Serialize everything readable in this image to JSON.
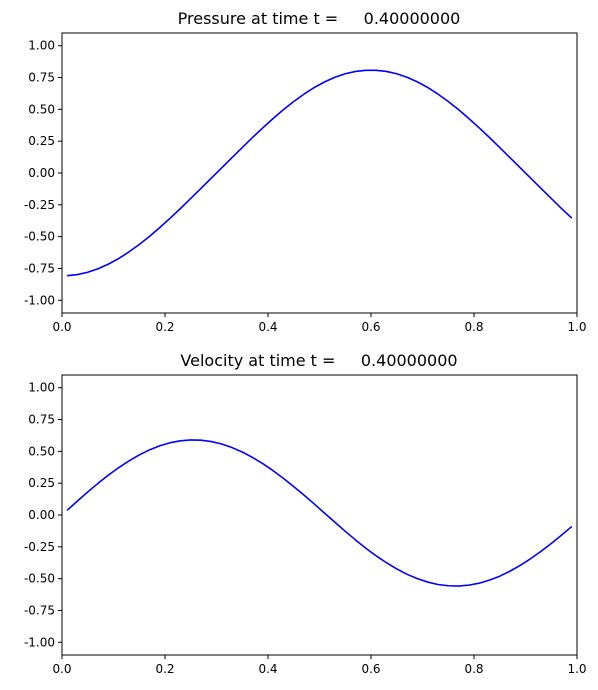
{
  "chart_data": [
    {
      "type": "line",
      "title": "Pressure at time t =     0.40000000",
      "xlabel": "",
      "ylabel": "",
      "xlim": [
        0.0,
        1.0
      ],
      "ylim": [
        -1.1,
        1.1
      ],
      "grid": false,
      "xticks": [
        "0.0",
        "0.2",
        "0.4",
        "0.6",
        "0.8",
        "1.0"
      ],
      "yticks": [
        "1.00",
        "0.75",
        "0.50",
        "0.25",
        "0.00",
        "-0.25",
        "-0.50",
        "-0.75",
        "-1.00"
      ],
      "series": [
        {
          "color": "#0000ff",
          "x": [
            0.01,
            0.03,
            0.05,
            0.07,
            0.09,
            0.11,
            0.13,
            0.15,
            0.17,
            0.19,
            0.21,
            0.23,
            0.25,
            0.27,
            0.29,
            0.31,
            0.33,
            0.35,
            0.37,
            0.39,
            0.41,
            0.43,
            0.45,
            0.47,
            0.49,
            0.51,
            0.53,
            0.55,
            0.57,
            0.59,
            0.61,
            0.63,
            0.65,
            0.67,
            0.69,
            0.71,
            0.73,
            0.75,
            0.77,
            0.79,
            0.81,
            0.83,
            0.85,
            0.87,
            0.89,
            0.91,
            0.93,
            0.95,
            0.97,
            0.99
          ],
          "y": [
            -0.807,
            -0.798,
            -0.78,
            -0.752,
            -0.716,
            -0.672,
            -0.62,
            -0.562,
            -0.498,
            -0.428,
            -0.355,
            -0.279,
            -0.2,
            -0.12,
            -0.04,
            0.04,
            0.12,
            0.2,
            0.279,
            0.355,
            0.428,
            0.498,
            0.562,
            0.62,
            0.672,
            0.716,
            0.752,
            0.78,
            0.798,
            0.807,
            0.807,
            0.798,
            0.78,
            0.752,
            0.716,
            0.672,
            0.62,
            0.562,
            0.498,
            0.428,
            0.355,
            0.279,
            0.2,
            0.12,
            0.04,
            -0.04,
            -0.12,
            -0.2,
            -0.279,
            -0.355
          ]
        }
      ]
    },
    {
      "type": "line",
      "title": "Velocity at time t =     0.40000000",
      "xlabel": "",
      "ylabel": "",
      "xlim": [
        0.0,
        1.0
      ],
      "ylim": [
        -1.1,
        1.1
      ],
      "grid": false,
      "xticks": [
        "0.0",
        "0.2",
        "0.4",
        "0.6",
        "0.8",
        "1.0"
      ],
      "yticks": [
        "1.00",
        "0.75",
        "0.50",
        "0.25",
        "0.00",
        "-0.25",
        "-0.50",
        "-0.75",
        "-1.00"
      ],
      "series": [
        {
          "color": "#0000ff",
          "x": [
            0.01,
            0.03,
            0.05,
            0.07,
            0.09,
            0.11,
            0.13,
            0.15,
            0.17,
            0.19,
            0.21,
            0.23,
            0.25,
            0.27,
            0.29,
            0.31,
            0.33,
            0.35,
            0.37,
            0.39,
            0.41,
            0.43,
            0.45,
            0.47,
            0.49,
            0.51,
            0.53,
            0.55,
            0.57,
            0.59,
            0.61,
            0.63,
            0.65,
            0.67,
            0.69,
            0.71,
            0.73,
            0.75,
            0.77,
            0.79,
            0.81,
            0.83,
            0.85,
            0.87,
            0.89,
            0.91,
            0.93,
            0.95,
            0.97,
            0.99
          ],
          "y": [
            0.037,
            0.11,
            0.181,
            0.249,
            0.313,
            0.372,
            0.425,
            0.472,
            0.512,
            0.544,
            0.568,
            0.583,
            0.59,
            0.588,
            0.577,
            0.558,
            0.53,
            0.495,
            0.452,
            0.403,
            0.348,
            0.288,
            0.223,
            0.156,
            0.086,
            0.014,
            -0.057,
            -0.128,
            -0.196,
            -0.261,
            -0.321,
            -0.375,
            -0.424,
            -0.466,
            -0.5,
            -0.527,
            -0.546,
            -0.556,
            -0.558,
            -0.551,
            -0.536,
            -0.512,
            -0.481,
            -0.441,
            -0.395,
            -0.343,
            -0.286,
            -0.224,
            -0.158,
            -0.09
          ]
        }
      ]
    }
  ]
}
